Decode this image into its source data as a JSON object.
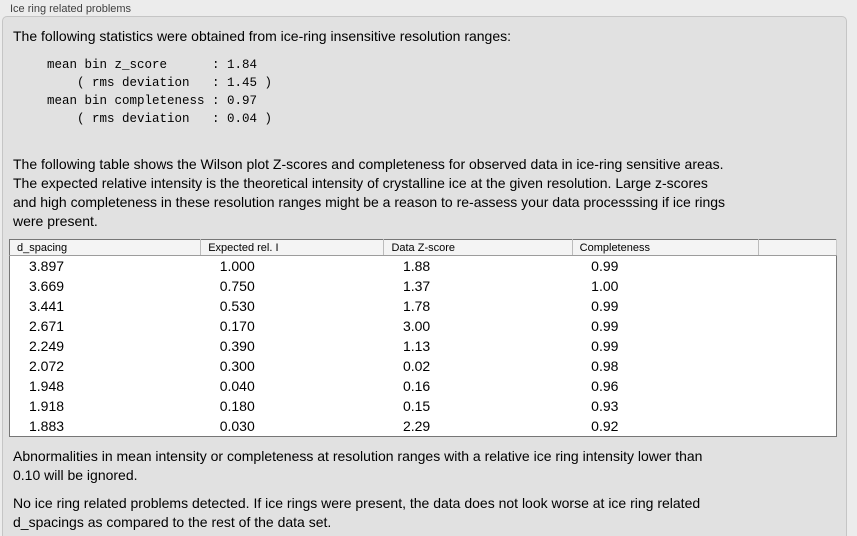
{
  "panel": {
    "title": "Ice ring related problems"
  },
  "intro": {
    "text": "The following statistics were obtained from ice-ring insensitive resolution ranges:"
  },
  "stats": {
    "text": "mean bin z_score      : 1.84\n    ( rms deviation   : 1.45 )\nmean bin completeness : 0.97\n    ( rms deviation   : 0.04 )",
    "mean_bin_z_score": "1.84",
    "z_score_rms_deviation": "1.45",
    "mean_bin_completeness": "0.97",
    "completeness_rms_deviation": "0.04"
  },
  "table_intro": {
    "text": "The following table shows the Wilson plot Z-scores and completeness for observed data in ice-ring sensitive areas.\nThe expected relative intensity is the theoretical intensity of crystalline ice at the given resolution. Large z-scores\nand high completeness in these resolution ranges might be a reason to re-assess your data processsing if ice rings\nwere present."
  },
  "table": {
    "columns": [
      "d_spacing",
      "Expected rel. I",
      "Data Z-score",
      "Completeness",
      ""
    ],
    "rows": [
      [
        "3.897",
        "1.000",
        "1.88",
        "0.99"
      ],
      [
        "3.669",
        "0.750",
        "1.37",
        "1.00"
      ],
      [
        "3.441",
        "0.530",
        "1.78",
        "0.99"
      ],
      [
        "2.671",
        "0.170",
        "3.00",
        "0.99"
      ],
      [
        "2.249",
        "0.390",
        "1.13",
        "0.99"
      ],
      [
        "2.072",
        "0.300",
        "0.02",
        "0.98"
      ],
      [
        "1.948",
        "0.040",
        "0.16",
        "0.96"
      ],
      [
        "1.918",
        "0.180",
        "0.15",
        "0.93"
      ],
      [
        "1.883",
        "0.030",
        "2.29",
        "0.92"
      ]
    ]
  },
  "notes": {
    "ignore": "Abnormalities in mean intensity or completeness at resolution ranges with a relative ice ring intensity lower than\n0.10 will be ignored.",
    "conclusion": "No ice ring related problems detected. If ice rings were present, the data does not look worse at ice ring related\nd_spacings as compared to the rest of the data set."
  }
}
